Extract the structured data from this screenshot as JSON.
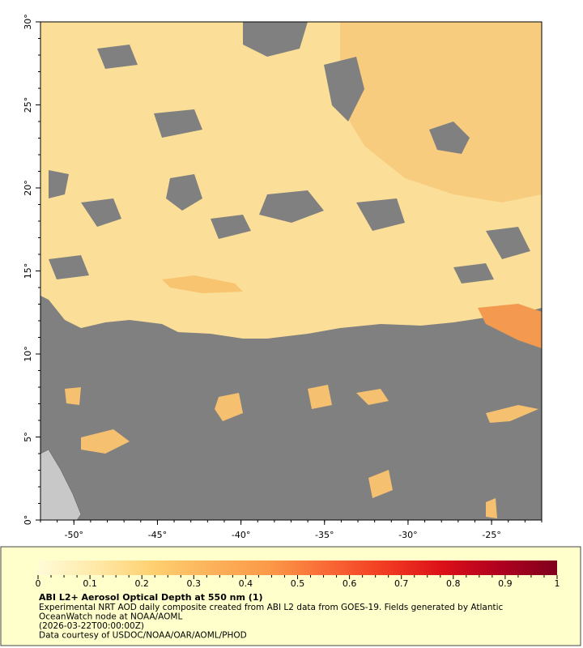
{
  "map": {
    "type": "map",
    "xlim": [
      -52,
      -22
    ],
    "ylim": [
      0,
      30
    ],
    "xticks": [
      {
        "value": -50,
        "label": "-50°"
      },
      {
        "value": -45,
        "label": "-45°"
      },
      {
        "value": -40,
        "label": "-40°"
      },
      {
        "value": -35,
        "label": "-35°"
      },
      {
        "value": -30,
        "label": "-30°"
      },
      {
        "value": -25,
        "label": "-25°"
      }
    ],
    "yticks": [
      {
        "value": 0,
        "label": "0°"
      },
      {
        "value": 5,
        "label": "5°"
      },
      {
        "value": 10,
        "label": "10°"
      },
      {
        "value": 15,
        "label": "15°"
      },
      {
        "value": 20,
        "label": "20°"
      },
      {
        "value": 25,
        "label": "25°"
      },
      {
        "value": 30,
        "label": "30°"
      }
    ]
  },
  "colorbar": {
    "title": "ABI L2+ Aerosol Optical Depth at 550 nm (1)",
    "lim": [
      0,
      1
    ],
    "ticks": [
      0,
      0.1,
      0.2,
      0.3,
      0.4,
      0.5,
      0.6,
      0.7,
      0.8,
      0.9,
      1
    ],
    "colors": [
      "#fffbd8",
      "#ffe9a8",
      "#fed070",
      "#fcb25a",
      "#fb9a48",
      "#f96a36",
      "#f23c22",
      "#dc1018",
      "#b00020",
      "#80001c"
    ]
  },
  "caption": {
    "lines": [
      "Experimental NRT AOD daily composite created from ABI L2 data from GOES-19. Fields generated by Atlantic",
      "OceanWatch node at NOAA/AOML",
      "(2026-03-22T00:00:00Z)",
      "Data courtesy of USDOC/NOAA/OAR/AOML/PHOD"
    ]
  }
}
